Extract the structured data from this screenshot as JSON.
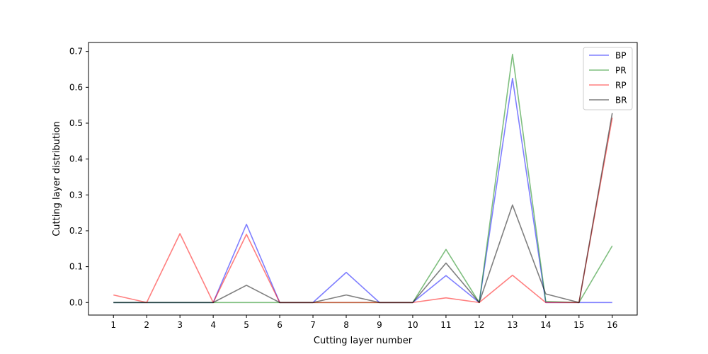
{
  "chart_data": {
    "type": "line",
    "title": "",
    "xlabel": "Cutting layer number",
    "ylabel": "Cutting layer distribution",
    "x": [
      1,
      2,
      3,
      4,
      5,
      6,
      7,
      8,
      9,
      10,
      11,
      12,
      13,
      14,
      15,
      16
    ],
    "xticks": [
      "1",
      "2",
      "3",
      "4",
      "5",
      "6",
      "7",
      "8",
      "9",
      "10",
      "11",
      "12",
      "13",
      "14",
      "15",
      "16"
    ],
    "yticks": [
      "0.0",
      "0.1",
      "0.2",
      "0.3",
      "0.4",
      "0.5",
      "0.6",
      "0.7"
    ],
    "ylim": [
      -0.035,
      0.725
    ],
    "xlim": [
      0.25,
      16.75
    ],
    "grid": false,
    "legend_position": "top-right",
    "series": [
      {
        "name": "BP",
        "color": "#0000ff",
        "values": [
          0,
          0,
          0,
          0,
          0.218,
          0,
          0,
          0.084,
          0,
          0,
          0.075,
          0,
          0.625,
          0,
          0,
          0
        ]
      },
      {
        "name": "PR",
        "color": "#008000",
        "values": [
          0,
          0,
          0,
          0,
          0,
          0,
          0,
          0,
          0,
          0,
          0.148,
          0,
          0.692,
          0.003,
          0,
          0.158
        ]
      },
      {
        "name": "RP",
        "color": "#ff0000",
        "values": [
          0.021,
          0,
          0.192,
          0,
          0.19,
          0,
          0,
          0,
          0,
          0,
          0.013,
          0,
          0.076,
          0,
          0,
          0.515
        ]
      },
      {
        "name": "BR",
        "color": "#000000",
        "values": [
          0,
          0,
          0,
          0,
          0.048,
          0,
          0,
          0.021,
          0,
          0,
          0.11,
          0,
          0.272,
          0.024,
          0,
          0.528
        ]
      }
    ]
  }
}
